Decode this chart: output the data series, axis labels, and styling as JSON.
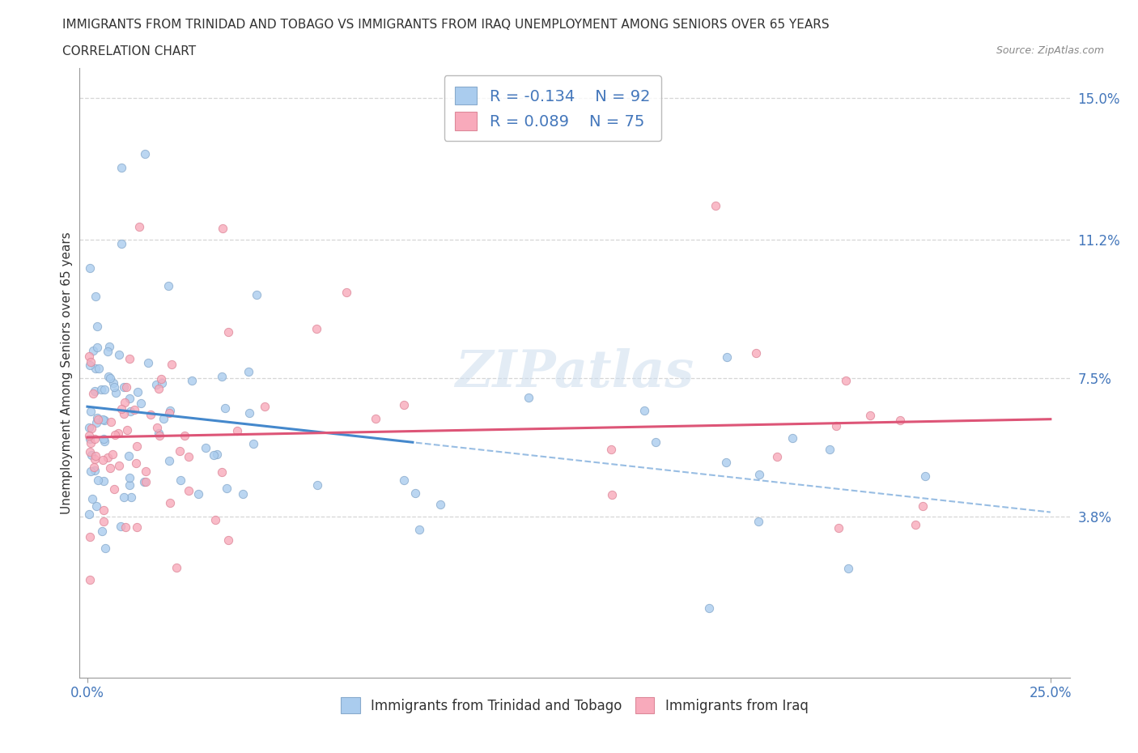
{
  "title_line1": "IMMIGRANTS FROM TRINIDAD AND TOBAGO VS IMMIGRANTS FROM IRAQ UNEMPLOYMENT AMONG SENIORS OVER 65 YEARS",
  "title_line2": "CORRELATION CHART",
  "source_text": "Source: ZipAtlas.com",
  "ylabel": "Unemployment Among Seniors over 65 years",
  "xlim": [
    -0.002,
    0.255
  ],
  "ylim": [
    -0.005,
    0.158
  ],
  "xtick_positions": [
    0.0,
    0.25
  ],
  "xtick_labels": [
    "0.0%",
    "25.0%"
  ],
  "ytick_positions": [
    0.038,
    0.075,
    0.112,
    0.15
  ],
  "ytick_labels": [
    "3.8%",
    "7.5%",
    "11.2%",
    "15.0%"
  ],
  "grid_color": "#cccccc",
  "series1_color": "#aaccee",
  "series1_edge": "#88aacc",
  "series2_color": "#f8aabb",
  "series2_edge": "#dd8899",
  "trend1_color": "#4488cc",
  "trend2_color": "#dd5577",
  "legend_label1": "Immigrants from Trinidad and Tobago",
  "legend_label2": "Immigrants from Iraq",
  "R1": -0.134,
  "N1": 92,
  "R2": 0.089,
  "N2": 75,
  "background_color": "#ffffff",
  "title_color": "#333333",
  "tick_color": "#4477bb",
  "tick_fontsize": 12,
  "title_fontsize": 11,
  "axis_label_fontsize": 11
}
